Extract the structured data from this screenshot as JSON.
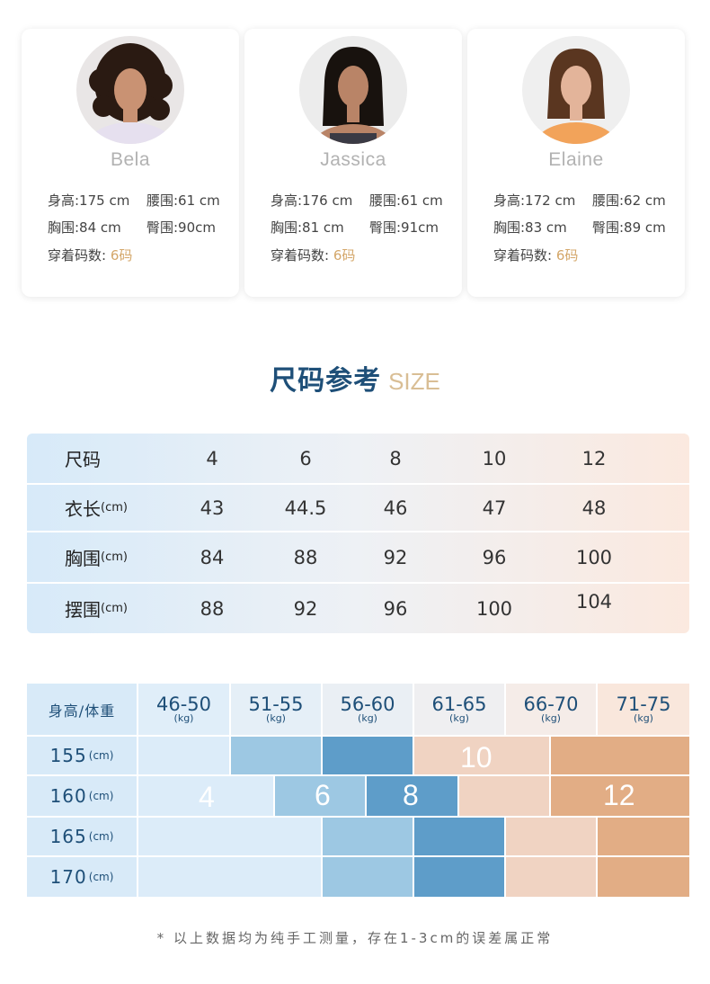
{
  "models": [
    {
      "name": "Bela",
      "height": "身高:175 cm",
      "waist": "腰围:61 cm",
      "chest": "胸围:84 cm",
      "hip": "臀围:90cm",
      "size_label": "穿着码数:",
      "size_value": "6码",
      "hair": "#2a1a12",
      "shirt": "#e6e0ef"
    },
    {
      "name": "Jassica",
      "height": "身高:176 cm",
      "waist": "腰围:61 cm",
      "chest": "胸围:81 cm",
      "hip": "臀围:91cm",
      "size_label": "穿着码数:",
      "size_value": "6码",
      "hair": "#18120e",
      "shirt": "#3a3a44"
    },
    {
      "name": "Elaine",
      "height": "身高:172 cm",
      "waist": "腰围:62 cm",
      "chest": "胸围:83 cm",
      "hip": "臀围:89 cm",
      "size_label": "穿着码数:",
      "size_value": "6码",
      "hair": "#5a3620",
      "shirt": "#f2a35a"
    }
  ],
  "section_title": {
    "cn": "尺码参考",
    "en": "SIZE"
  },
  "size_table": {
    "header_label": "尺码",
    "sizes": [
      "4",
      "6",
      "8",
      "10",
      "12"
    ],
    "rows": [
      {
        "label": "衣长",
        "unit": "(cm)",
        "values": [
          "43",
          "44.5",
          "46",
          "47",
          "48"
        ]
      },
      {
        "label": "胸围",
        "unit": "(cm)",
        "values": [
          "84",
          "88",
          "92",
          "96",
          "100"
        ]
      },
      {
        "label": "摆围",
        "unit": "(cm)",
        "values": [
          "88",
          "92",
          "96",
          "100",
          "104"
        ]
      }
    ]
  },
  "hw_chart": {
    "corner_label": "身高/体重",
    "weight_ranges": [
      "46-50",
      "51-55",
      "56-60",
      "61-65",
      "66-70",
      "71-75"
    ],
    "weight_unit": "(kg)",
    "heights": [
      "155",
      "160",
      "165",
      "170"
    ],
    "height_unit": "(cm)",
    "size_labels": [
      "4",
      "6",
      "8",
      "10",
      "12"
    ],
    "colors": {
      "size4": "#dcecf9",
      "size6": "#9dc8e3",
      "size8": "#5e9dc9",
      "size10": "#f0d3c2",
      "size12": "#e2ad85"
    }
  },
  "footnote": "* 以上数据均为纯手工测量，存在1-3cm的误差属正常"
}
